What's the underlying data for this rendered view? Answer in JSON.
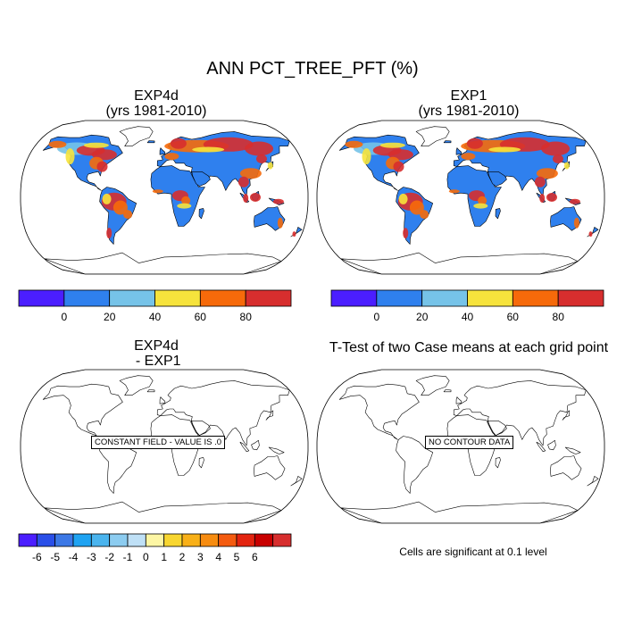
{
  "main_title": "ANN PCT_TREE_PFT (%)",
  "panels": [
    {
      "title_line1": "EXP4d",
      "title_line2": "(yrs 1981-2010)"
    },
    {
      "title_line1": "EXP1",
      "title_line2": "(yrs 1981-2010)"
    },
    {
      "title_line1": "EXP4d",
      "title_line2": " - EXP1",
      "message": "CONSTANT FIELD - VALUE IS .0"
    },
    {
      "title_line1": "T-Test of two Case means at each grid point",
      "message": "NO CONTOUR DATA"
    }
  ],
  "colorbar_main": {
    "colors": [
      "#4b1eff",
      "#2f80ee",
      "#76c3e8",
      "#f6e33c",
      "#f66a0a",
      "#d72e2e"
    ],
    "labels": [
      "0",
      "20",
      "40",
      "60",
      "80"
    ]
  },
  "colorbar_diff": {
    "colors": [
      "#4b1eff",
      "#2a4fe8",
      "#3c78e6",
      "#1fa3f2",
      "#4ab4ee",
      "#8cccf0",
      "#bfe0f6",
      "#fdf6a4",
      "#f8d630",
      "#f8b018",
      "#f78c10",
      "#f45b10",
      "#e32410",
      "#c80000",
      "#d72e2e"
    ],
    "labels": [
      "-6",
      "-5",
      "-4",
      "-3",
      "-2",
      "-1",
      "0",
      "1",
      "2",
      "3",
      "4",
      "5",
      "6"
    ]
  },
  "significance_note": "Cells are significant at 0.1 level",
  "colors": {
    "ocean": "#ffffff",
    "land_base": "#2f80ee",
    "coast": "#000000"
  }
}
